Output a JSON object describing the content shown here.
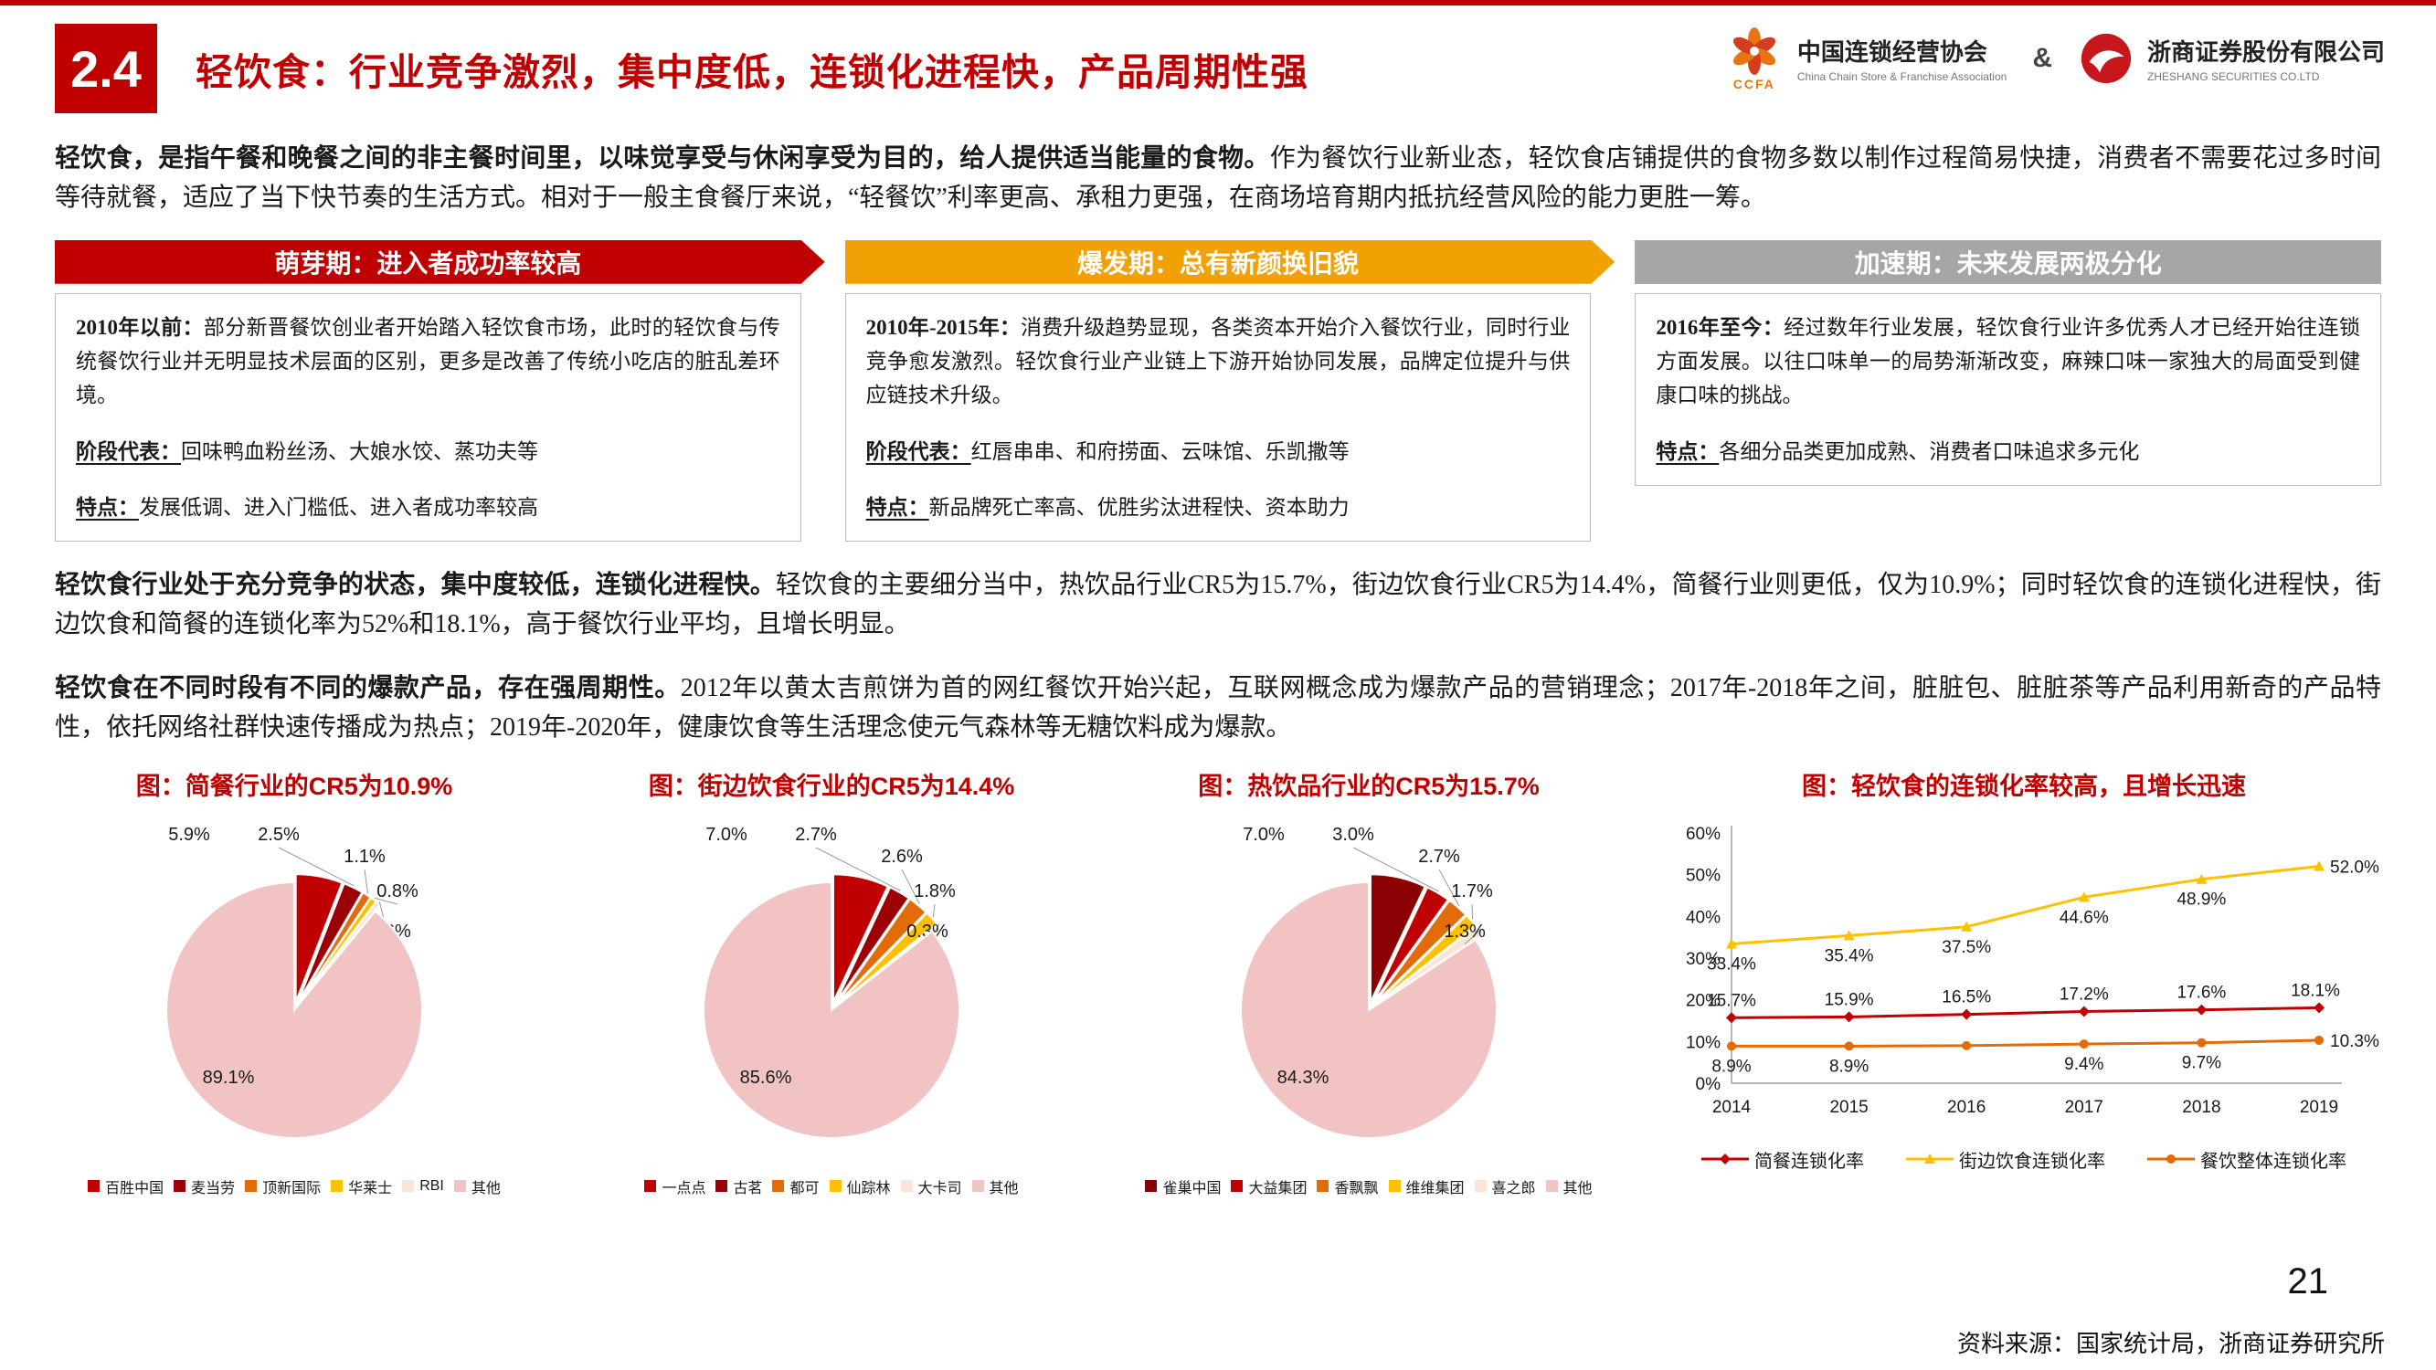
{
  "page": {
    "section_number": "2.4",
    "title": "轻饮食：行业竞争激烈，集中度低，连锁化进程快，产品周期性强",
    "page_number": "21",
    "source_note": "资料来源：国家统计局，浙商证券研究所"
  },
  "logos": {
    "ccfa_text": "CCFA",
    "ccfa_name": "中国连锁经营协会",
    "ccfa_name_en": "China Chain Store & Franchise Association",
    "ampersand": "&",
    "zs_name": "浙商证券股份有限公司",
    "zs_name_en": "ZHESHANG SECURITIES CO.LTD"
  },
  "intro": {
    "lead": "轻饮食，是指午餐和晚餐之间的非主餐时间里，以味觉享受与休闲享受为目的，给人提供适当能量的食物。",
    "rest": "作为餐饮行业新业态，轻饮食店铺提供的食物多数以制作过程简易快捷，消费者不需要花过多时间等待就餐，适应了当下快节奏的生活方式。相对于一般主食餐厅来说，“轻餐饮”利率更高、承租力更强，在商场培育期内抵抗经营风险的能力更胜一筹。"
  },
  "stages": [
    {
      "header": "萌芽期：进入者成功率较高",
      "header_color": "#C00000",
      "period_label": "2010年以前：",
      "period_text": "部分新晋餐饮创业者开始踏入轻饮食市场，此时的轻饮食与传统餐饮行业并无明显技术层面的区别，更多是改善了传统小吃店的脏乱差环境。",
      "rep_label": "阶段代表：",
      "rep_text": "回味鸭血粉丝汤、大娘水饺、蒸功夫等",
      "feature_label": "特点：",
      "feature_text": "发展低调、进入门槛低、进入者成功率较高"
    },
    {
      "header": "爆发期：总有新颜换旧貌",
      "header_color": "#F2A104",
      "period_label": "2010年-2015年：",
      "period_text": "消费升级趋势显现，各类资本开始介入餐饮行业，同时行业竞争愈发激烈。轻饮食行业产业链上下游开始协同发展，品牌定位提升与供应链技术升级。",
      "rep_label": "阶段代表：",
      "rep_text": "红唇串串、和府捞面、云味馆、乐凯撒等",
      "feature_label": "特点：",
      "feature_text": "新品牌死亡率高、优胜劣汰进程快、资本助力"
    },
    {
      "header": "加速期：未来发展两极分化",
      "header_color": "#A6A6A6",
      "period_label": "2016年至今：",
      "period_text": "经过数年行业发展，轻饮食行业许多优秀人才已经开始往连锁方面发展。以往口味单一的局势渐渐改变，麻辣口味一家独大的局面受到健康口味的挑战。",
      "feature_label": "特点：",
      "feature_text": "各细分品类更加成熟、消费者口味追求多元化"
    }
  ],
  "paragraphs": [
    {
      "lead": "轻饮食行业处于充分竞争的状态，集中度较低，连锁化进程快。",
      "rest": "轻饮食的主要细分当中，热饮品行业CR5为15.7%，街边饮食行业CR5为14.4%，简餐行业则更低，仅为10.9%；同时轻饮食的连锁化进程快，街边饮食和简餐的连锁化率为52%和18.1%，高于餐饮行业平均，且增长明显。"
    },
    {
      "lead": "轻饮食在不同时段有不同的爆款产品，存在强周期性。",
      "rest": "2012年以黄太吉煎饼为首的网红餐饮开始兴起，互联网概念成为爆款产品的营销理念；2017年-2018年之间，脏脏包、脏脏茶等产品利用新奇的产品特性，依托网络社群快速传播成为热点；2019年-2020年，健康饮食等生活理念使元气森林等无糖饮料成为爆款。"
    }
  ],
  "chart_data": [
    {
      "type": "pie",
      "title": "图：简餐行业的CR5为10.9%",
      "labels": [
        "百胜中国",
        "麦当劳",
        "顶新国际",
        "华莱士",
        "RBI",
        "其他"
      ],
      "values": [
        5.9,
        2.5,
        1.1,
        0.8,
        0.6,
        89.1
      ],
      "colors": [
        "#C00000",
        "#9C0006",
        "#E26B0A",
        "#FFC000",
        "#FBE5D6",
        "#F2C3C3"
      ]
    },
    {
      "type": "pie",
      "title": "图：街边饮食行业的CR5为14.4%",
      "labels": [
        "一点点",
        "古茗",
        "都可",
        "仙踪林",
        "大卡司",
        "其他"
      ],
      "values": [
        7.0,
        2.7,
        2.6,
        1.8,
        0.3,
        85.6
      ],
      "colors": [
        "#C00000",
        "#9C0006",
        "#E26B0A",
        "#FFC000",
        "#FBE5D6",
        "#F2C3C3"
      ]
    },
    {
      "type": "pie",
      "title": "图：热饮品行业的CR5为15.7%",
      "labels": [
        "雀巢中国",
        "大益集团",
        "香飘飘",
        "维维集团",
        "喜之郎",
        "其他"
      ],
      "values": [
        7.0,
        3.0,
        2.7,
        1.7,
        1.3,
        84.3
      ],
      "colors": [
        "#8B0000",
        "#C00000",
        "#E26B0A",
        "#FFC000",
        "#FBE5D6",
        "#F2C3C3"
      ]
    },
    {
      "type": "line",
      "title": "图：轻饮食的连锁化率较高，且增长迅速",
      "x": [
        "2014",
        "2015",
        "2016",
        "2017",
        "2018",
        "2019"
      ],
      "ylim": [
        0,
        60
      ],
      "ytick_step": 10,
      "series": [
        {
          "name": "简餐连锁化率",
          "color": "#C00000",
          "values": [
            15.7,
            15.9,
            16.5,
            17.2,
            17.6,
            18.1
          ],
          "labels": [
            "15.7%",
            "15.9%",
            "16.5%",
            "17.2%",
            "17.6%",
            "18.1%"
          ],
          "label_pos": "above"
        },
        {
          "name": "街边饮食连锁化率",
          "color": "#FFC000",
          "values": [
            33.4,
            35.4,
            37.5,
            44.6,
            48.9,
            52.0
          ],
          "labels": [
            "33.4%",
            "35.4%",
            "37.5%",
            "44.6%",
            "48.9%",
            "52.0%"
          ],
          "label_pos": "below"
        },
        {
          "name": "餐饮整体连锁化率",
          "color": "#E26B0A",
          "values": [
            8.9,
            8.9,
            9.0,
            9.4,
            9.7,
            10.3
          ],
          "labels": [
            "8.9%",
            "8.9%",
            "",
            "9.4%",
            "9.7%",
            "10.3%"
          ],
          "label_pos": "below"
        }
      ]
    }
  ]
}
